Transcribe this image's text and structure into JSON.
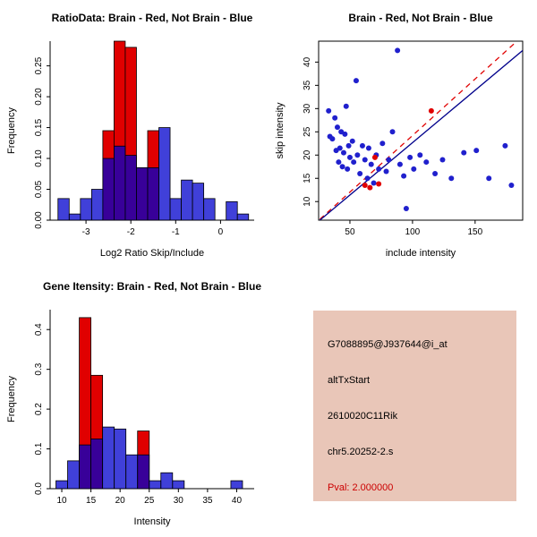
{
  "figure": {
    "background": "#ffffff",
    "layout": "2x2 R plot panels"
  },
  "chart_data": [
    {
      "id": "ratio_hist",
      "type": "bar",
      "subtype": "overlaid-histogram",
      "title": "RatioData: Brain - Red, Not Brain - Blue",
      "xlabel": "Log2 Ratio Skip/Include",
      "ylabel": "Frequency",
      "xlim": [
        -3.8,
        0.75
      ],
      "ylim": [
        0,
        0.29
      ],
      "xticks": [
        -3,
        -2,
        -1,
        0
      ],
      "xtick_labels": [
        "-3",
        "-2",
        "-1",
        "0"
      ],
      "yticks": [
        0,
        0.05,
        0.1,
        0.15,
        0.2,
        0.25
      ],
      "ytick_labels": [
        "0.00",
        "0.05",
        "0.10",
        "0.15",
        "0.20",
        "0.25"
      ],
      "grid": false,
      "series": [
        {
          "name": "Brain",
          "key": "brain",
          "color": "#E00000",
          "opacity": 1,
          "bars": [
            [
              -2.625,
              -2.375,
              0.145
            ],
            [
              -2.375,
              -2.125,
              0.29
            ],
            [
              -2.125,
              -1.875,
              0.28
            ],
            [
              -1.875,
              -1.625,
              0.085
            ],
            [
              -1.625,
              -1.375,
              0.145
            ]
          ]
        },
        {
          "name": "Not Brain",
          "key": "not-brain",
          "color": "#0000CC",
          "opacity": 0.75,
          "bars": [
            [
              -3.625,
              -3.375,
              0.035
            ],
            [
              -3.375,
              -3.125,
              0.01
            ],
            [
              -3.125,
              -2.875,
              0.035
            ],
            [
              -2.875,
              -2.625,
              0.05
            ],
            [
              -2.625,
              -2.375,
              0.1
            ],
            [
              -2.375,
              -2.125,
              0.12
            ],
            [
              -2.125,
              -1.875,
              0.105
            ],
            [
              -1.875,
              -1.625,
              0.085
            ],
            [
              -1.625,
              -1.375,
              0.085
            ],
            [
              -1.375,
              -1.125,
              0.15
            ],
            [
              -1.125,
              -0.875,
              0.035
            ],
            [
              -0.875,
              -0.625,
              0.065
            ],
            [
              -0.625,
              -0.375,
              0.06
            ],
            [
              -0.375,
              -0.125,
              0.035
            ],
            [
              0.125,
              0.375,
              0.03
            ],
            [
              0.375,
              0.625,
              0.01
            ]
          ]
        }
      ]
    },
    {
      "id": "scatter",
      "type": "scatter",
      "title": "Brain - Red, Not Brain - Blue",
      "xlabel": "include intensity",
      "ylabel": "skip intensity",
      "xlim": [
        25,
        188
      ],
      "ylim": [
        6,
        44.5
      ],
      "xticks": [
        50,
        100,
        150
      ],
      "xtick_labels": [
        "50",
        "100",
        "150"
      ],
      "yticks": [
        10,
        15,
        20,
        25,
        30,
        35,
        40
      ],
      "ytick_labels": [
        "10",
        "15",
        "20",
        "25",
        "30",
        "35",
        "40"
      ],
      "grid": false,
      "boxed": true,
      "lines": [
        {
          "name": "fit-line-brain",
          "color": "#E00000",
          "dash": true,
          "x1": 26,
          "y1": 6.2,
          "x2": 183,
          "y2": 44.4
        },
        {
          "name": "fit-line-not-brain",
          "color": "#00008B",
          "dash": false,
          "x1": 26,
          "y1": 6.0,
          "x2": 188,
          "y2": 42.5
        }
      ],
      "series": [
        {
          "name": "Not Brain",
          "key": "not-brain",
          "color": "#2020CD",
          "points": [
            [
              33,
              29.5
            ],
            [
              34,
              24
            ],
            [
              36,
              23.5
            ],
            [
              38,
              28
            ],
            [
              39,
              21
            ],
            [
              40,
              26
            ],
            [
              41,
              18.5
            ],
            [
              42,
              21.5
            ],
            [
              43,
              25
            ],
            [
              44,
              17.5
            ],
            [
              45,
              20.5
            ],
            [
              46,
              24.5
            ],
            [
              47,
              30.5
            ],
            [
              48,
              17
            ],
            [
              49,
              22
            ],
            [
              50,
              19.5
            ],
            [
              52,
              23
            ],
            [
              53,
              18.5
            ],
            [
              55,
              36
            ],
            [
              56,
              20
            ],
            [
              58,
              16
            ],
            [
              60,
              22
            ],
            [
              62,
              19
            ],
            [
              64,
              15
            ],
            [
              65,
              21.5
            ],
            [
              67,
              18
            ],
            [
              69,
              14
            ],
            [
              71,
              20
            ],
            [
              73,
              17
            ],
            [
              76,
              22.5
            ],
            [
              79,
              16.5
            ],
            [
              81,
              19
            ],
            [
              84,
              25
            ],
            [
              88,
              42.5
            ],
            [
              90,
              18
            ],
            [
              93,
              15.5
            ],
            [
              95,
              8.5
            ],
            [
              98,
              19.5
            ],
            [
              101,
              17
            ],
            [
              106,
              20
            ],
            [
              111,
              18.5
            ],
            [
              118,
              16
            ],
            [
              124,
              19
            ],
            [
              131,
              15
            ],
            [
              141,
              20.5
            ],
            [
              151,
              21
            ],
            [
              161,
              15
            ],
            [
              174,
              22
            ],
            [
              179,
              13.5
            ]
          ]
        },
        {
          "name": "Brain",
          "key": "brain",
          "color": "#E00000",
          "points": [
            [
              62,
              13.5
            ],
            [
              66,
              13
            ],
            [
              70,
              19.5
            ],
            [
              73,
              13.8
            ],
            [
              115,
              29.5
            ]
          ]
        }
      ]
    },
    {
      "id": "gene_hist",
      "type": "bar",
      "subtype": "overlaid-histogram",
      "title": "Gene Itensity: Brain - Red, Not Brain - Blue",
      "xlabel": "Intensity",
      "ylabel": "Frequency",
      "xlim": [
        8,
        43
      ],
      "ylim": [
        0,
        0.45
      ],
      "xticks": [
        10,
        15,
        20,
        25,
        30,
        35,
        40
      ],
      "xtick_labels": [
        "10",
        "15",
        "20",
        "25",
        "30",
        "35",
        "40"
      ],
      "yticks": [
        0,
        0.1,
        0.2,
        0.3,
        0.4
      ],
      "ytick_labels": [
        "0.0",
        "0.1",
        "0.2",
        "0.3",
        "0.4"
      ],
      "grid": false,
      "series": [
        {
          "name": "Brain",
          "key": "brain",
          "color": "#E00000",
          "opacity": 1,
          "bars": [
            [
              13,
              15,
              0.43
            ],
            [
              15,
              17,
              0.285
            ],
            [
              23,
              25,
              0.145
            ]
          ]
        },
        {
          "name": "Not Brain",
          "key": "not-brain",
          "color": "#0000CC",
          "opacity": 0.75,
          "bars": [
            [
              9,
              11,
              0.02
            ],
            [
              11,
              13,
              0.07
            ],
            [
              13,
              15,
              0.11
            ],
            [
              15,
              17,
              0.125
            ],
            [
              17,
              19,
              0.155
            ],
            [
              19,
              21,
              0.15
            ],
            [
              21,
              23,
              0.085
            ],
            [
              23,
              25,
              0.085
            ],
            [
              25,
              27,
              0.02
            ],
            [
              27,
              29,
              0.04
            ],
            [
              29,
              31,
              0.02
            ],
            [
              39,
              41,
              0.02
            ]
          ]
        }
      ]
    }
  ],
  "info_box": {
    "bg": "#E9C6B8",
    "lines": [
      {
        "text": "G7088895@J937644@i_at",
        "color": "#000000"
      },
      {
        "text": "altTxStart",
        "color": "#000000"
      },
      {
        "text": "2610020C11Rik",
        "color": "#000000"
      },
      {
        "text": "chr5.20252-2.s",
        "color": "#000000"
      },
      {
        "text": "Pval: 2.000000",
        "color": "#CC0000"
      }
    ]
  }
}
